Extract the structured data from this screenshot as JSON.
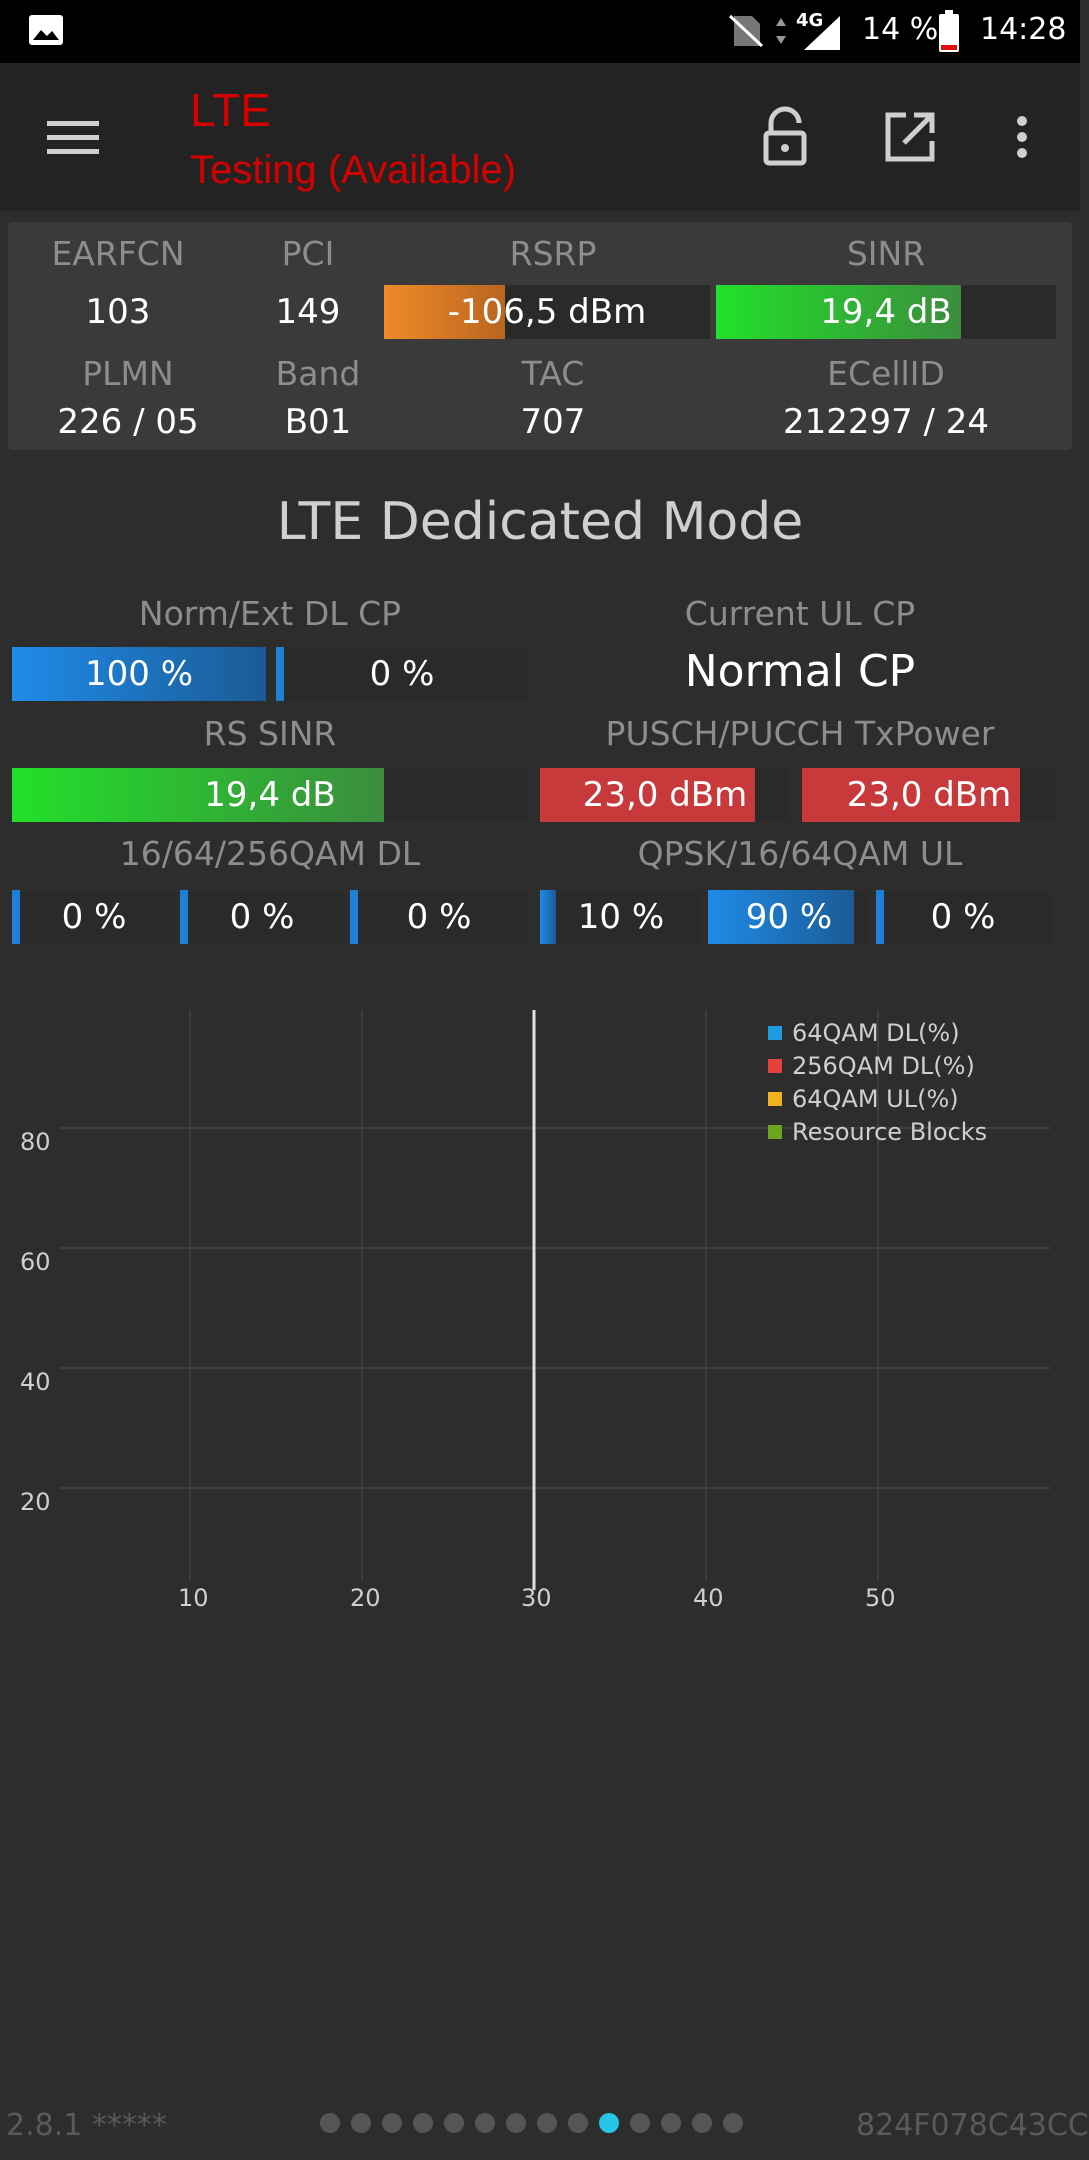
{
  "status_bar": {
    "network": "4G",
    "battery": "14 %",
    "time": "14:28"
  },
  "toolbar": {
    "title": "LTE",
    "subtitle": "Testing (Available)"
  },
  "summary": {
    "labels": {
      "earfcn": "EARFCN",
      "pci": "PCI",
      "rsrp": "RSRP",
      "sinr": "SINR",
      "plmn": "PLMN",
      "band": "Band",
      "tac": "TAC",
      "ecellid": "ECellID"
    },
    "earfcn": "103",
    "pci": "149",
    "rsrp": {
      "text": "-106,5 dBm",
      "fraction": 0.37
    },
    "sinr": {
      "text": "19,4 dB",
      "fraction": 0.72
    },
    "plmn": "226 / 05",
    "band": "B01",
    "tac": "707",
    "ecellid": "212297 / 24"
  },
  "dedicated": {
    "title": "LTE Dedicated Mode",
    "labels": {
      "cp_dl": "Norm/Ext DL CP",
      "cp_ul": "Current UL CP",
      "rs_sinr": "RS SINR",
      "txpower": "PUSCH/PUCCH TxPower",
      "qam_dl": "16/64/256QAM DL",
      "qam_ul": "QPSK/16/64QAM UL"
    },
    "cp_dl": [
      {
        "text": "100 %",
        "fraction": 1.0
      },
      {
        "text": "0 %",
        "fraction": 0.0
      }
    ],
    "cp_ul_value": "Normal CP",
    "rs_sinr": {
      "text": "19,4 dB",
      "fraction": 0.72
    },
    "txpower": [
      {
        "text": "23,0 dBm",
        "fraction": 0.86
      },
      {
        "text": "23,0 dBm",
        "fraction": 0.86
      }
    ],
    "qam_dl": [
      {
        "text": "0 %",
        "fraction": 0
      },
      {
        "text": "0 %",
        "fraction": 0
      },
      {
        "text": "0 %",
        "fraction": 0
      }
    ],
    "qam_ul": [
      {
        "text": "10 %",
        "fraction": 0.1
      },
      {
        "text": "90 %",
        "fraction": 0.9
      },
      {
        "text": "0 %",
        "fraction": 0
      }
    ]
  },
  "chart": {
    "y_ticks": [
      "80",
      "60",
      "40",
      "20"
    ],
    "x_ticks": [
      "10",
      "20",
      "30",
      "40",
      "50"
    ],
    "legend": [
      {
        "name": "64QAM DL(%)",
        "color": "#1e9be0"
      },
      {
        "name": "256QAM DL(%)",
        "color": "#e8403e"
      },
      {
        "name": "64QAM UL(%)",
        "color": "#f2b21f"
      },
      {
        "name": "Resource Blocks",
        "color": "#6aa51e"
      }
    ]
  },
  "footer": {
    "version": "2.8.1 *****",
    "device_id": "824F078C43CC",
    "page_count": 14,
    "active_page": 10
  }
}
